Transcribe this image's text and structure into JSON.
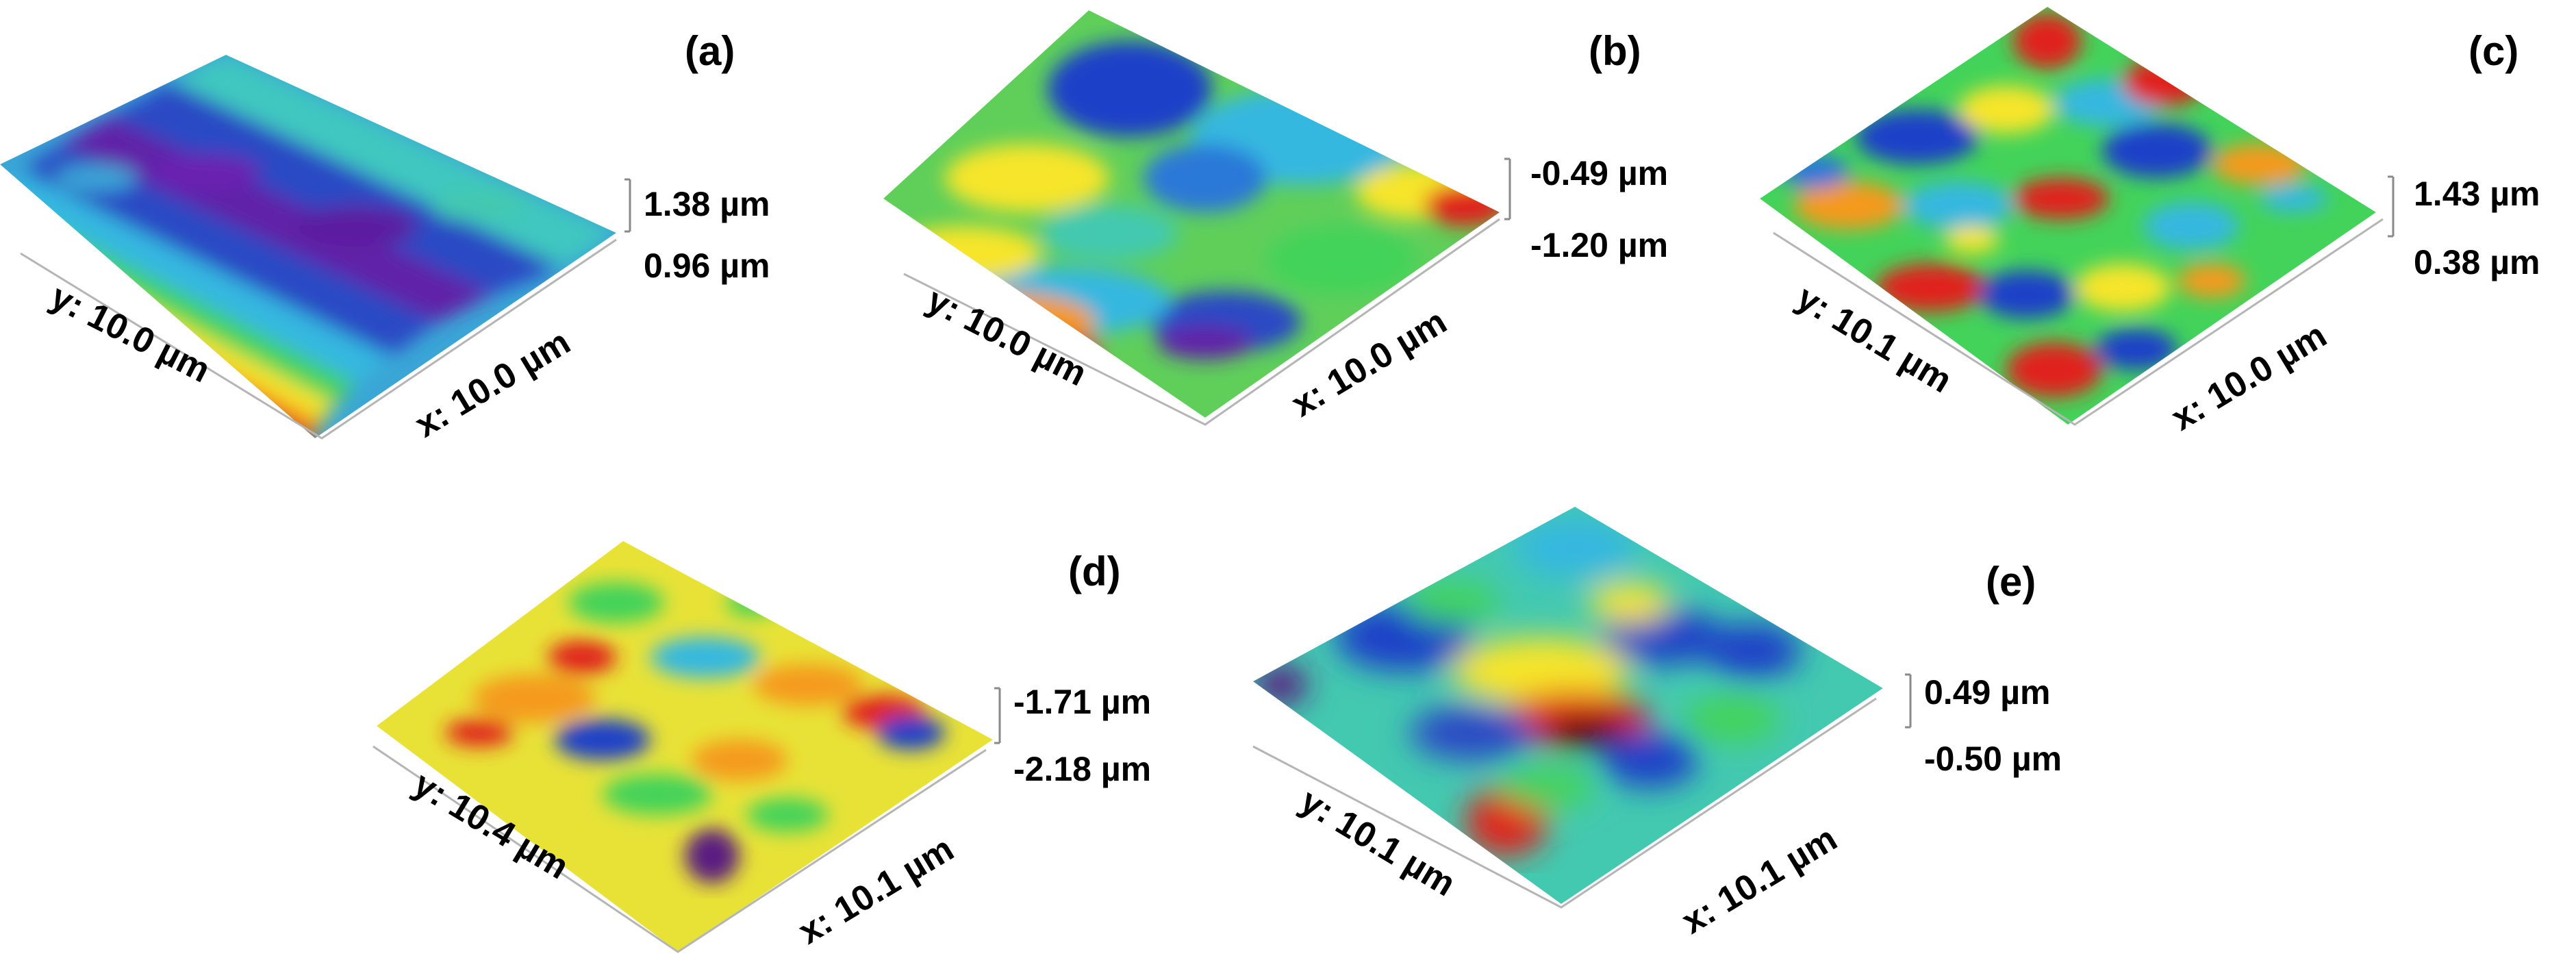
{
  "figure": {
    "panels": [
      {
        "id": "a",
        "label": "(a)",
        "x_axis": "x: 10.0 µm",
        "y_axis": "y: 10.0 µm",
        "z_max": "1.38 µm",
        "z_min": "0.96 µm",
        "palette": "mixed"
      },
      {
        "id": "b",
        "label": "(b)",
        "x_axis": "x: 10.0 µm",
        "y_axis": "y: 10.0 µm",
        "z_max": "-0.49 µm",
        "z_min": "-1.20 µm",
        "palette": "greenish"
      },
      {
        "id": "c",
        "label": "(c)",
        "x_axis": "x: 10.0 µm",
        "y_axis": "y: 10.1 µm",
        "z_max": "1.43 µm",
        "z_min": "0.38 µm",
        "palette": "rainbow"
      },
      {
        "id": "d",
        "label": "(d)",
        "x_axis": "x: 10.1 µm",
        "y_axis": "y: 10.4 µm",
        "z_max": "-1.71 µm",
        "z_min": "-2.18 µm",
        "palette": "yellowish"
      },
      {
        "id": "e",
        "label": "(e)",
        "x_axis": "x: 10.1 µm",
        "y_axis": "y: 10.1 µm",
        "z_max": "0.49 µm",
        "z_min": "-0.50 µm",
        "palette": "smooth"
      }
    ],
    "colors": {
      "low": "#6b1fa8",
      "blue": "#1f3fc8",
      "cyan": "#36b8e0",
      "green": "#43d35a",
      "yellow": "#f6e52a",
      "orange": "#f59a1d",
      "red": "#e0241b",
      "high": "#5a0a08"
    }
  }
}
